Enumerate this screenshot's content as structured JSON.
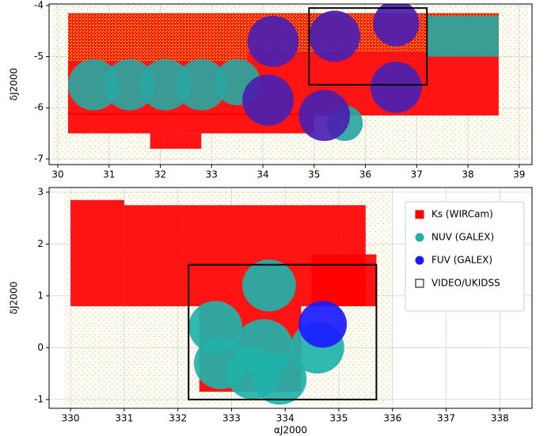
{
  "chart_data": [
    {
      "type": "coverage",
      "ylabel": "δJ2000",
      "xlim": [
        29.83,
        39.25
      ],
      "ylim": [
        -7.11,
        -3.97
      ],
      "xticks": [
        30,
        31,
        32,
        33,
        34,
        35,
        36,
        37,
        38,
        39
      ],
      "yticks": [
        -7,
        -6,
        -5,
        -4
      ],
      "grid": true,
      "series": [
        {
          "color": "#ffc000",
          "fill": "sparse",
          "rects": [
            [
              29.9,
              -7.05,
              39.2,
              -4.0
            ]
          ]
        },
        {
          "color": "#ff0000",
          "fill": "solid",
          "rects": [
            [
              30.2,
              -6.15,
              38.6,
              -4.15
            ],
            [
              30.2,
              -6.5,
              35.0,
              -6.1
            ],
            [
              31.8,
              -6.8,
              32.8,
              -6.5
            ]
          ]
        },
        {
          "color": "#ffc000",
          "fill": "dense",
          "rects": [
            [
              30.2,
              -5.1,
              33.7,
              -4.15
            ],
            [
              33.7,
              -4.9,
              38.6,
              -4.15
            ]
          ]
        },
        {
          "color": "#2aa6a0",
          "fill": "solid",
          "rects": [
            [
              37.2,
              -5.0,
              38.6,
              -4.2
            ]
          ],
          "circles": [
            [
              30.7,
              -5.55,
              0.5
            ],
            [
              31.4,
              -5.55,
              0.5
            ],
            [
              32.1,
              -5.55,
              0.5
            ],
            [
              32.8,
              -5.55,
              0.5
            ],
            [
              33.5,
              -5.5,
              0.45
            ],
            [
              35.6,
              -6.3,
              0.35
            ]
          ]
        },
        {
          "color": "#4a20b0",
          "fill": "solid",
          "circles": [
            [
              34.2,
              -4.7,
              0.5
            ],
            [
              34.1,
              -5.85,
              0.5
            ],
            [
              35.2,
              -6.15,
              0.5
            ],
            [
              36.6,
              -5.6,
              0.5
            ],
            [
              35.4,
              -4.6,
              0.5
            ],
            [
              36.6,
              -4.35,
              0.45
            ]
          ]
        },
        {
          "color": "#000000",
          "fill": "outline",
          "rects": [
            [
              34.9,
              -5.55,
              37.2,
              -4.05
            ]
          ]
        }
      ]
    },
    {
      "type": "coverage",
      "ylabel": "δJ2000",
      "xlabel": "αJ2000",
      "xlim": [
        329.6,
        338.6
      ],
      "ylim": [
        -1.17,
        3.09
      ],
      "xticks": [
        330,
        331,
        332,
        333,
        334,
        335,
        336,
        337,
        338
      ],
      "yticks": [
        -1,
        0,
        1,
        2,
        3
      ],
      "grid": true,
      "legend": "upper right",
      "series": [
        {
          "color": "#ffc000",
          "fill": "sparse",
          "rects": [
            [
              329.9,
              -1.1,
              336.0,
              3.0
            ]
          ]
        },
        {
          "name": "Ks (WIRCam)",
          "color": "#ff0000",
          "fill": "solid",
          "marker": "square",
          "rects": [
            [
              330.0,
              0.8,
              331.0,
              2.85
            ],
            [
              331.0,
              0.8,
              335.5,
              2.75
            ],
            [
              334.5,
              0.8,
              335.7,
              1.8
            ],
            [
              332.4,
              -0.85,
              334.3,
              0.8
            ]
          ]
        },
        {
          "name": "NUV (GALEX)",
          "color": "#20b2aa",
          "fill": "solid",
          "marker": "circle",
          "circles": [
            [
              332.7,
              0.4,
              0.5
            ],
            [
              333.7,
              1.2,
              0.5
            ],
            [
              333.6,
              0.0,
              0.55
            ],
            [
              334.6,
              0.0,
              0.5
            ],
            [
              332.8,
              -0.3,
              0.5
            ],
            [
              333.9,
              -0.6,
              0.5
            ],
            [
              333.4,
              -0.5,
              0.5
            ]
          ]
        },
        {
          "name": "FUV (GALEX)",
          "color": "#1a1aff",
          "fill": "solid",
          "marker": "circle",
          "circles": [
            [
              334.7,
              0.45,
              0.45
            ]
          ]
        },
        {
          "name": "VIDEO/UKIDSS",
          "color": "#000000",
          "fill": "outline",
          "marker": "open-square",
          "rects": [
            [
              332.2,
              -1.0,
              335.7,
              1.6
            ]
          ]
        }
      ]
    }
  ]
}
